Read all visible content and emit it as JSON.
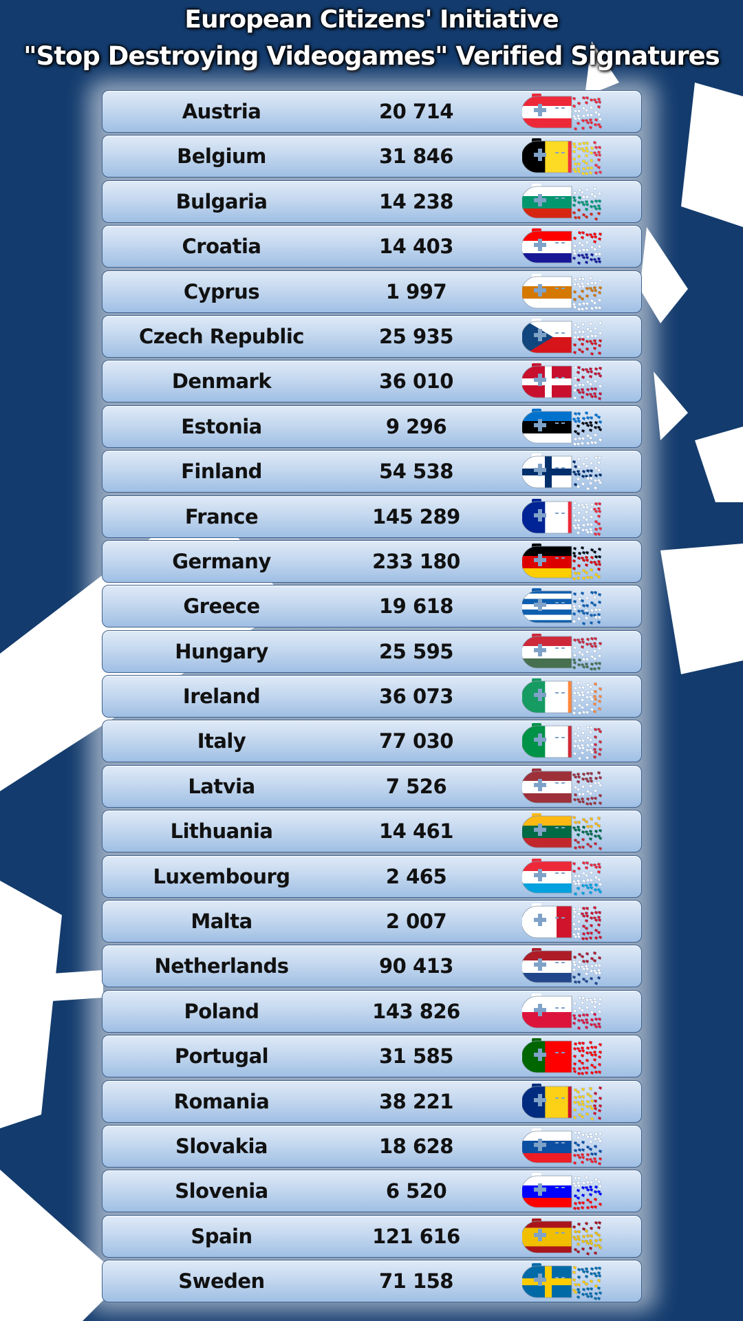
{
  "title": {
    "line1": "European Citizens' Initiative",
    "line2": "\"Stop Destroying Videogames\" Verified Signatures"
  },
  "colors": {
    "background": "#133b6d",
    "row_top": "#dfeaf7",
    "row_bottom": "#9fbfe4",
    "text": "#111111"
  },
  "rows": [
    {
      "country": "Austria",
      "signatures": "20 714",
      "icon": "controller-flag-icon",
      "flag": {
        "type": "h",
        "colors": [
          "#ed2939",
          "#ffffff",
          "#ed2939"
        ]
      }
    },
    {
      "country": "Belgium",
      "signatures": "31 846",
      "icon": "controller-flag-icon",
      "flag": {
        "type": "v",
        "colors": [
          "#000000",
          "#fdda24",
          "#ef3340"
        ]
      }
    },
    {
      "country": "Bulgaria",
      "signatures": "14 238",
      "icon": "controller-flag-icon",
      "flag": {
        "type": "h",
        "colors": [
          "#ffffff",
          "#00966e",
          "#d62612"
        ]
      }
    },
    {
      "country": "Croatia",
      "signatures": "14 403",
      "icon": "controller-flag-icon",
      "flag": {
        "type": "h",
        "colors": [
          "#ff0000",
          "#ffffff",
          "#171796"
        ]
      }
    },
    {
      "country": "Cyprus",
      "signatures": "1 997",
      "icon": "controller-flag-icon",
      "flag": {
        "type": "h",
        "colors": [
          "#ffffff",
          "#d57800",
          "#ffffff"
        ]
      }
    },
    {
      "country": "Czech Republic",
      "signatures": "25 935",
      "icon": "controller-flag-icon",
      "flag": {
        "type": "tri",
        "colors": [
          "#ffffff",
          "#d7141a",
          "#11457e"
        ]
      }
    },
    {
      "country": "Denmark",
      "signatures": "36 010",
      "icon": "controller-flag-icon",
      "flag": {
        "type": "cross",
        "colors": [
          "#c8102e",
          "#ffffff"
        ]
      }
    },
    {
      "country": "Estonia",
      "signatures": "9 296",
      "icon": "controller-flag-icon",
      "flag": {
        "type": "h",
        "colors": [
          "#0072ce",
          "#000000",
          "#ffffff"
        ]
      }
    },
    {
      "country": "Finland",
      "signatures": "54 538",
      "icon": "controller-flag-icon",
      "flag": {
        "type": "cross",
        "colors": [
          "#ffffff",
          "#002f6c"
        ]
      }
    },
    {
      "country": "France",
      "signatures": "145 289",
      "icon": "controller-flag-icon",
      "flag": {
        "type": "v",
        "colors": [
          "#002395",
          "#ffffff",
          "#ed2939"
        ]
      }
    },
    {
      "country": "Germany",
      "signatures": "233 180",
      "icon": "controller-flag-icon",
      "flag": {
        "type": "h",
        "colors": [
          "#000000",
          "#dd0000",
          "#ffce00"
        ]
      }
    },
    {
      "country": "Greece",
      "signatures": "19 618",
      "icon": "controller-flag-icon",
      "flag": {
        "type": "h",
        "colors": [
          "#0d5eaf",
          "#ffffff",
          "#0d5eaf",
          "#ffffff",
          "#0d5eaf",
          "#ffffff",
          "#0d5eaf"
        ]
      }
    },
    {
      "country": "Hungary",
      "signatures": "25 595",
      "icon": "controller-flag-icon",
      "flag": {
        "type": "h",
        "colors": [
          "#ce2939",
          "#ffffff",
          "#477050"
        ]
      }
    },
    {
      "country": "Ireland",
      "signatures": "36 073",
      "icon": "controller-flag-icon",
      "flag": {
        "type": "v",
        "colors": [
          "#169b62",
          "#ffffff",
          "#ff883e"
        ]
      }
    },
    {
      "country": "Italy",
      "signatures": "77 030",
      "icon": "controller-flag-icon",
      "flag": {
        "type": "v",
        "colors": [
          "#009246",
          "#ffffff",
          "#ce2b37"
        ]
      }
    },
    {
      "country": "Latvia",
      "signatures": "7 526",
      "icon": "controller-flag-icon",
      "flag": {
        "type": "h",
        "colors": [
          "#9e3039",
          "#ffffff",
          "#9e3039"
        ]
      }
    },
    {
      "country": "Lithuania",
      "signatures": "14 461",
      "icon": "controller-flag-icon",
      "flag": {
        "type": "h",
        "colors": [
          "#fdb913",
          "#006a44",
          "#c1272d"
        ]
      }
    },
    {
      "country": "Luxembourg",
      "signatures": "2 465",
      "icon": "controller-flag-icon",
      "flag": {
        "type": "h",
        "colors": [
          "#ed2939",
          "#ffffff",
          "#00a1de"
        ]
      }
    },
    {
      "country": "Malta",
      "signatures": "2 007",
      "icon": "controller-flag-icon",
      "flag": {
        "type": "v",
        "colors": [
          "#ffffff",
          "#cf142b"
        ]
      }
    },
    {
      "country": "Netherlands",
      "signatures": "90 413",
      "icon": "controller-flag-icon",
      "flag": {
        "type": "h",
        "colors": [
          "#ae1c28",
          "#ffffff",
          "#21468b"
        ]
      }
    },
    {
      "country": "Poland",
      "signatures": "143 826",
      "icon": "controller-flag-icon",
      "flag": {
        "type": "h",
        "colors": [
          "#ffffff",
          "#dc143c"
        ]
      }
    },
    {
      "country": "Portugal",
      "signatures": "31 585",
      "icon": "controller-flag-icon",
      "flag": {
        "type": "v",
        "colors": [
          "#006600",
          "#ff0000",
          "#ff0000"
        ]
      }
    },
    {
      "country": "Romania",
      "signatures": "38 221",
      "icon": "controller-flag-icon",
      "flag": {
        "type": "v",
        "colors": [
          "#002b7f",
          "#fcd116",
          "#ce1126"
        ]
      }
    },
    {
      "country": "Slovakia",
      "signatures": "18 628",
      "icon": "controller-flag-icon",
      "flag": {
        "type": "h",
        "colors": [
          "#ffffff",
          "#0b4ea2",
          "#ee1c25"
        ]
      }
    },
    {
      "country": "Slovenia",
      "signatures": "6 520",
      "icon": "controller-flag-icon",
      "flag": {
        "type": "h",
        "colors": [
          "#ffffff",
          "#0000ff",
          "#ff0000"
        ]
      }
    },
    {
      "country": "Spain",
      "signatures": "121 616",
      "icon": "controller-flag-icon",
      "flag": {
        "type": "h",
        "colors": [
          "#aa151b",
          "#f1bf00",
          "#f1bf00",
          "#aa151b"
        ]
      }
    },
    {
      "country": "Sweden",
      "signatures": "71 158",
      "icon": "controller-flag-icon",
      "flag": {
        "type": "cross",
        "colors": [
          "#006aa7",
          "#fecc00"
        ]
      }
    }
  ]
}
